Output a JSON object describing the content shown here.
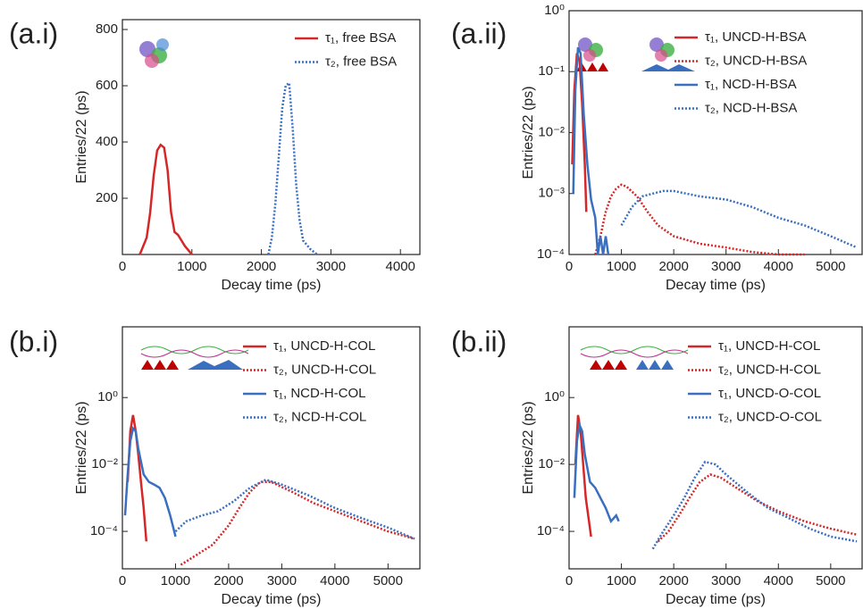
{
  "chart_data": [
    {
      "type": "line",
      "panel_label": "(a.i)",
      "x_label": "Decay time (ps)",
      "y_label": "Entries/22 (ps)",
      "log_y": false,
      "xlim": [
        0,
        4280
      ],
      "xticks": [
        0,
        1000,
        2000,
        3000,
        4000
      ],
      "ylim": [
        0,
        835
      ],
      "yticks": [
        200,
        400,
        600,
        800
      ],
      "series": [
        {
          "name": "τ₁, free BSA",
          "color": "#d62728",
          "dash": false,
          "x": [
            250,
            350,
            400,
            450,
            500,
            550,
            600,
            650,
            700,
            750,
            800,
            900,
            1000
          ],
          "values": [
            0,
            60,
            150,
            280,
            370,
            390,
            380,
            300,
            150,
            80,
            70,
            30,
            0
          ]
        },
        {
          "name": "τ₂, free BSA",
          "color": "#3a6fbf",
          "dash": true,
          "x": [
            2100,
            2150,
            2200,
            2250,
            2300,
            2350,
            2400,
            2450,
            2500,
            2550,
            2600,
            2700,
            2800
          ],
          "values": [
            0,
            60,
            180,
            350,
            520,
            600,
            610,
            450,
            250,
            120,
            50,
            20,
            0
          ]
        }
      ]
    },
    {
      "type": "line",
      "panel_label": "(a.ii)",
      "x_label": "Decay time (ps)",
      "y_label": "Entries/22 (ps)",
      "log_y": true,
      "xlim": [
        0,
        5600
      ],
      "xticks": [
        0,
        1000,
        2000,
        3000,
        4000,
        5000
      ],
      "ylim": [
        0.0001,
        1
      ],
      "yticks": [
        {
          "value": 1,
          "label": "10⁰"
        },
        {
          "value": 0.1,
          "label": "10⁻¹"
        },
        {
          "value": 0.01,
          "label": "10⁻²"
        },
        {
          "value": 0.001,
          "label": "10⁻³"
        },
        {
          "value": 0.0001,
          "label": "10⁻⁴"
        }
      ],
      "series": [
        {
          "name": "τ₁, UNCD-H-BSA",
          "color": "#d62728",
          "dash": false,
          "x": [
            60,
            100,
            150,
            200,
            250,
            300,
            330
          ],
          "values": [
            0.003,
            0.05,
            0.2,
            0.15,
            0.03,
            0.003,
            0.0005
          ]
        },
        {
          "name": "τ₂, UNCD-H-BSA",
          "color": "#d62728",
          "dash": true,
          "x": [
            500,
            600,
            700,
            800,
            900,
            1000,
            1100,
            1300,
            1500,
            1700,
            2000,
            2500,
            3000,
            3500,
            4000,
            4500
          ],
          "values": [
            0.0001,
            0.0002,
            0.0005,
            0.0009,
            0.0012,
            0.0014,
            0.0013,
            0.0009,
            0.0005,
            0.0003,
            0.0002,
            0.00015,
            0.00013,
            0.00011,
            0.0001,
            0.0001
          ]
        },
        {
          "name": "τ₁, NCD-H-BSA",
          "color": "#3a6fbf",
          "dash": false,
          "x": [
            80,
            120,
            170,
            220,
            280,
            350,
            420,
            500,
            550,
            600,
            650,
            700,
            750
          ],
          "values": [
            0.001,
            0.05,
            0.25,
            0.2,
            0.02,
            0.003,
            0.0008,
            0.0004,
            0.0001,
            0.0002,
            0.0001,
            0.0002,
            0.0001
          ]
        },
        {
          "name": "τ₂, NCD-H-BSA",
          "color": "#3a6fbf",
          "dash": true,
          "x": [
            1000,
            1200,
            1400,
            1600,
            1800,
            2000,
            2500,
            3000,
            3500,
            4000,
            4500,
            5000,
            5500
          ],
          "values": [
            0.0003,
            0.0006,
            0.0009,
            0.001,
            0.0011,
            0.0011,
            0.0009,
            0.0008,
            0.0006,
            0.0004,
            0.0003,
            0.0002,
            0.00013
          ]
        }
      ]
    },
    {
      "type": "line",
      "panel_label": "(b.i)",
      "x_label": "Decay time (ps)",
      "y_label": "Entries/22 (ps)",
      "log_y": true,
      "xlim": [
        0,
        5600
      ],
      "xticks": [
        0,
        1000,
        2000,
        3000,
        4000,
        5000
      ],
      "ylim": [
        7.6e-06,
        130
      ],
      "yticks": [
        {
          "value": 1,
          "label": "10⁰"
        },
        {
          "value": 0.01,
          "label": "10⁻²"
        },
        {
          "value": 0.0001,
          "label": "10⁻⁴"
        }
      ],
      "series": [
        {
          "name": "τ₁, UNCD-H-COL",
          "color": "#d62728",
          "dash": false,
          "x": [
            100,
            150,
            200,
            250,
            300,
            350,
            400,
            450
          ],
          "values": [
            0.003,
            0.1,
            0.3,
            0.1,
            0.02,
            0.003,
            0.0005,
            5e-05
          ]
        },
        {
          "name": "τ₂, UNCD-H-COL",
          "color": "#d62728",
          "dash": true,
          "x": [
            1100,
            1400,
            1700,
            2000,
            2200,
            2400,
            2600,
            2800,
            3200,
            3600,
            4000,
            4500,
            5000,
            5500
          ],
          "values": [
            1e-05,
            2e-05,
            4e-05,
            0.00015,
            0.0005,
            0.0015,
            0.003,
            0.003,
            0.0015,
            0.0007,
            0.0004,
            0.0002,
            0.0001,
            6e-05
          ]
        },
        {
          "name": "τ₁, NCD-H-COL",
          "color": "#3a6fbf",
          "dash": false,
          "x": [
            50,
            100,
            150,
            200,
            250,
            300,
            400,
            500,
            600,
            700,
            800,
            900,
            1000
          ],
          "values": [
            0.0003,
            0.005,
            0.05,
            0.12,
            0.1,
            0.03,
            0.005,
            0.003,
            0.0025,
            0.002,
            0.001,
            0.0003,
            7e-05
          ]
        },
        {
          "name": "τ₂, NCD-H-COL",
          "color": "#3a6fbf",
          "dash": true,
          "x": [
            1000,
            1200,
            1500,
            1800,
            2100,
            2400,
            2700,
            3000,
            3500,
            4000,
            4500,
            5000,
            5500
          ],
          "values": [
            0.0001,
            0.0002,
            0.0003,
            0.0004,
            0.0008,
            0.002,
            0.0035,
            0.0025,
            0.0012,
            0.0005,
            0.00025,
            0.00013,
            6e-05
          ]
        }
      ]
    },
    {
      "type": "line",
      "panel_label": "(b.ii)",
      "x_label": "Decay time (ps)",
      "y_label": "Entries/22 (ps)",
      "log_y": true,
      "xlim": [
        0,
        5600
      ],
      "xticks": [
        0,
        1000,
        2000,
        3000,
        4000,
        5000
      ],
      "ylim": [
        7.6e-06,
        130
      ],
      "yticks": [
        {
          "value": 1,
          "label": "10⁰"
        },
        {
          "value": 0.01,
          "label": "10⁻²"
        },
        {
          "value": 0.0001,
          "label": "10⁻⁴"
        }
      ],
      "series": [
        {
          "name": "τ₁, UNCD-H-COL",
          "color": "#d62728",
          "dash": false,
          "x": [
            120,
            170,
            220,
            270,
            320,
            380,
            420
          ],
          "values": [
            0.01,
            0.3,
            0.1,
            0.01,
            0.001,
            0.0002,
            7e-05
          ]
        },
        {
          "name": "τ₂, UNCD-H-COL",
          "color": "#d62728",
          "dash": true,
          "x": [
            1700,
            1900,
            2100,
            2300,
            2500,
            2700,
            2900,
            3200,
            3600,
            4000,
            4500,
            5000,
            5500
          ],
          "values": [
            5e-05,
            0.0001,
            0.0003,
            0.001,
            0.003,
            0.005,
            0.004,
            0.002,
            0.0008,
            0.0004,
            0.0002,
            0.00012,
            8e-05
          ]
        },
        {
          "name": "τ₁, UNCD-O-COL",
          "color": "#3a6fbf",
          "dash": false,
          "x": [
            100,
            150,
            200,
            250,
            300,
            400,
            500,
            600,
            700,
            800,
            900,
            950
          ],
          "values": [
            0.001,
            0.05,
            0.15,
            0.1,
            0.02,
            0.003,
            0.002,
            0.001,
            0.0005,
            0.0002,
            0.0003,
            0.0002
          ]
        },
        {
          "name": "τ₂, UNCD-O-COL",
          "color": "#3a6fbf",
          "dash": true,
          "x": [
            1600,
            1800,
            2000,
            2200,
            2400,
            2600,
            2800,
            3000,
            3400,
            3800,
            4200,
            4600,
            5000,
            5500
          ],
          "values": [
            3e-05,
            0.0001,
            0.0003,
            0.001,
            0.004,
            0.012,
            0.01,
            0.005,
            0.0015,
            0.0005,
            0.00025,
            0.00012,
            7e-05,
            5e-05
          ]
        }
      ]
    }
  ]
}
